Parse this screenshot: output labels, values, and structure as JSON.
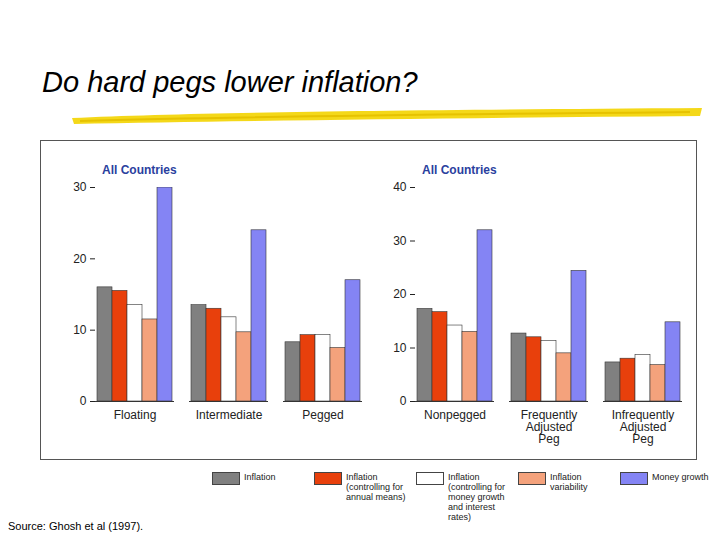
{
  "title": "Do hard pegs lower inflation?",
  "source": "Source: Ghosh et al (1997).",
  "chart_data": [
    {
      "type": "bar",
      "title": "All Countries",
      "categories": [
        "Floating",
        "Intermediate",
        "Pegged"
      ],
      "series": [
        {
          "name": "Inflation",
          "color": "#808080",
          "values": [
            16,
            13.5,
            8.3
          ]
        },
        {
          "name": "Inflation (controlling for annual means)",
          "color": "#e8400c",
          "values": [
            15.5,
            13,
            9.3
          ]
        },
        {
          "name": "Inflation (controlling for money growth and interest rates)",
          "color": "#ffffff",
          "values": [
            13.5,
            11.8,
            9.3
          ]
        },
        {
          "name": "Inflation variability",
          "color": "#f4a27c",
          "values": [
            11.5,
            9.7,
            7.5
          ]
        },
        {
          "name": "Money growth",
          "color": "#8484f4",
          "values": [
            30,
            24,
            17
          ]
        }
      ],
      "ylim": [
        0,
        30
      ],
      "yticks": [
        0,
        10,
        20,
        30
      ]
    },
    {
      "type": "bar",
      "title": "All Countries",
      "categories": [
        "Nonpegged",
        "Frequently Adjusted Peg",
        "Infrequently Adjusted Peg"
      ],
      "series": [
        {
          "name": "Inflation",
          "color": "#808080",
          "values": [
            17.3,
            12.7,
            7.3
          ]
        },
        {
          "name": "Inflation (controlling for annual means)",
          "color": "#e8400c",
          "values": [
            16.7,
            12,
            8
          ]
        },
        {
          "name": "Inflation (controlling for money growth and interest rates)",
          "color": "#ffffff",
          "values": [
            14.2,
            11.3,
            8.7
          ]
        },
        {
          "name": "Inflation variability",
          "color": "#f4a27c",
          "values": [
            13,
            9,
            6.8
          ]
        },
        {
          "name": "Money growth",
          "color": "#8484f4",
          "values": [
            32,
            24.4,
            14.8
          ]
        }
      ],
      "ylim": [
        0,
        40
      ],
      "yticks": [
        0,
        10,
        20,
        30,
        40
      ]
    }
  ]
}
